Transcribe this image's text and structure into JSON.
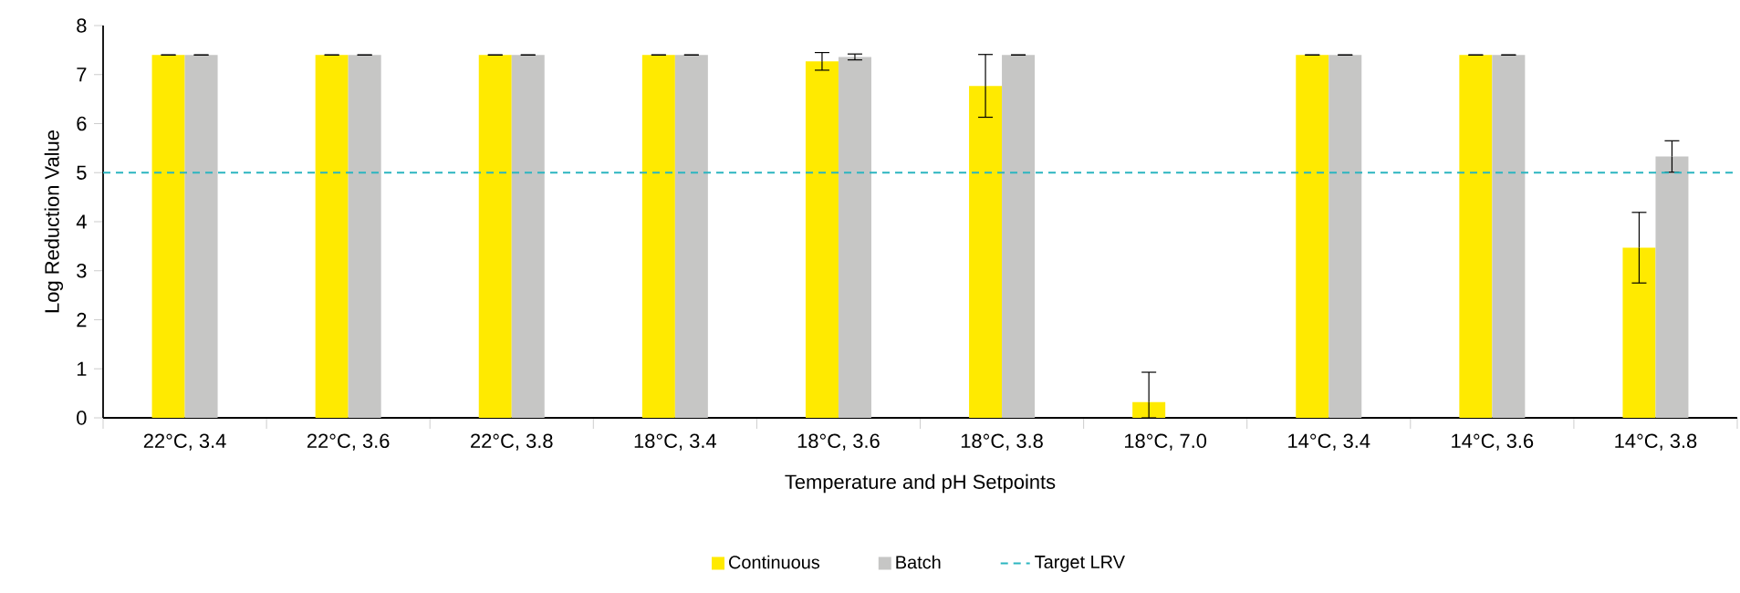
{
  "chart_data": {
    "type": "bar",
    "xlabel": "Temperature and pH Setpoints",
    "ylabel": "Log Reduction Value",
    "categories": [
      "22°C, 3.4",
      "22°C, 3.6",
      "22°C, 3.8",
      "18°C, 3.4",
      "18°C, 3.6",
      "18°C, 3.8",
      "18°C, 7.0",
      "14°C, 3.4",
      "14°C, 3.6",
      "14°C, 3.8"
    ],
    "series": [
      {
        "name": "Continuous",
        "color": "#ffea00",
        "values": [
          7.4,
          7.4,
          7.4,
          7.4,
          7.27,
          6.77,
          0.32,
          7.4,
          7.4,
          3.47
        ],
        "errors": [
          0,
          0,
          0,
          0,
          0.18,
          0.64,
          [
            0,
            0.93
          ],
          0,
          0,
          0.72
        ]
      },
      {
        "name": "Batch",
        "color": "#c6c6c5",
        "values": [
          7.4,
          7.4,
          7.4,
          7.4,
          7.36,
          7.4,
          0,
          7.4,
          7.4,
          5.33
        ],
        "errors": [
          0,
          0,
          0,
          0,
          0.06,
          0,
          null,
          0,
          0,
          0.32
        ]
      }
    ],
    "ylim": [
      0,
      8
    ],
    "yticks": [
      0,
      1,
      2,
      3,
      4,
      5,
      6,
      7,
      8
    ],
    "ref_lines": [
      {
        "axis": "y",
        "value": 5,
        "label": "Target LRV",
        "color": "#2bb5c0",
        "line_style": "dashed"
      }
    ],
    "legend": "bottom",
    "grid": false
  }
}
